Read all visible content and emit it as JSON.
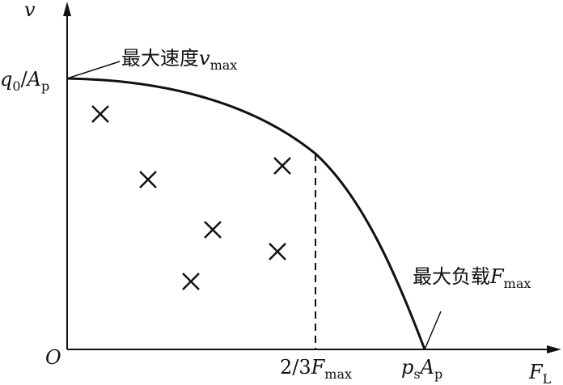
{
  "y_axis_label": {
    "var": "v"
  },
  "x_axis_label": {
    "var": "F",
    "sub": "L"
  },
  "origin": "O",
  "y_intercept": {
    "var": "q",
    "sub": "0",
    "sep": "/",
    "var2": "A",
    "sub2": "p"
  },
  "x_intercept": {
    "var": "p",
    "sub": "s",
    "var2": "A",
    "sub2": "p"
  },
  "dashed_marker": {
    "prefix": "2/3",
    "var": "F",
    "sub": "max"
  },
  "max_speed_note": {
    "text": "最大速度",
    "var": "v",
    "sub": "max"
  },
  "max_load_note": {
    "text": "最大负载",
    "var": "F",
    "sub": "max"
  }
}
